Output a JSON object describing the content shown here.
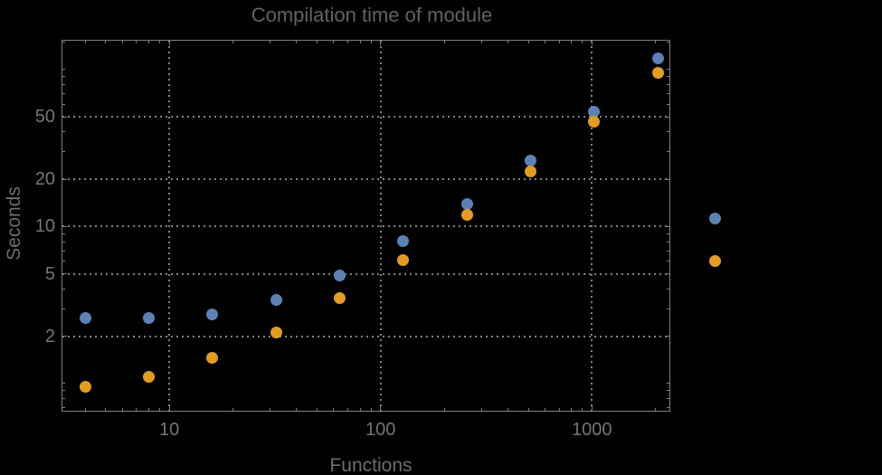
{
  "window": {
    "background": "#000000"
  },
  "chart_data": {
    "type": "scatter",
    "title": "Compilation time of module",
    "xlabel": "Functions",
    "ylabel": "Seconds",
    "xscale": "log",
    "yscale": "log",
    "xlim": [
      3.09,
      2350
    ],
    "ylim": [
      0.66,
      155
    ],
    "grid": "dotted",
    "legend_position": "right-outside",
    "x": [
      4,
      8,
      16,
      32,
      64,
      128,
      256,
      512,
      1024,
      2048
    ],
    "series": [
      {
        "name": "series-1-blue",
        "color": "#5e81b5",
        "values": [
          2.6,
          2.6,
          2.75,
          3.4,
          4.9,
          8.1,
          14,
          26.4,
          54,
          118
        ]
      },
      {
        "name": "series-2-orange",
        "color": "#e19c24",
        "values": [
          0.95,
          1.1,
          1.45,
          2.1,
          3.5,
          6.1,
          11.9,
          22.5,
          46.5,
          96
        ]
      }
    ],
    "x_ticks": {
      "major": [
        10,
        100,
        1000
      ],
      "major_labels": [
        "10",
        "100",
        "1000"
      ],
      "minor": [
        4,
        5,
        6,
        7,
        8,
        9,
        20,
        30,
        40,
        50,
        60,
        70,
        80,
        90,
        200,
        300,
        400,
        500,
        600,
        700,
        800,
        900,
        2000
      ]
    },
    "y_ticks": {
      "major": [
        2,
        5,
        10,
        20,
        50
      ],
      "major_labels": [
        "2",
        "5",
        "10",
        "20",
        "50"
      ],
      "minor": [
        0.7,
        0.8,
        0.9,
        1,
        3,
        4,
        6,
        7,
        8,
        9,
        30,
        40,
        60,
        70,
        80,
        90,
        100,
        150
      ]
    },
    "legend": {
      "entries": [
        {
          "series": "series-1-blue",
          "color": "#5e81b5",
          "label": ""
        },
        {
          "series": "series-2-orange",
          "color": "#e19c24",
          "label": ""
        }
      ]
    }
  },
  "colors": {
    "background": "#000000",
    "frame": "#7e7e7e",
    "grid": "#828282",
    "title": "#626262",
    "tick_label": "#757575",
    "axis_label": "#6d6d6d",
    "series1": "#5e81b5",
    "series2": "#e19c24"
  }
}
